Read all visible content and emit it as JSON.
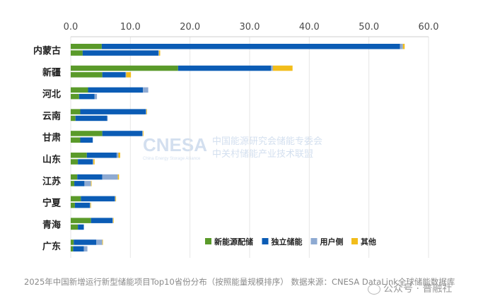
{
  "chart_data": {
    "type": "bar",
    "orientation": "horizontal",
    "stacked": true,
    "xlim": [
      0,
      60
    ],
    "x_ticks": [
      "0.0",
      "10.0",
      "20.0",
      "30.0",
      "40.0",
      "50.0",
      "60.0"
    ],
    "categories": [
      "内蒙古",
      "新疆",
      "河北",
      "云南",
      "甘肃",
      "山东",
      "江苏",
      "宁夏",
      "青海",
      "广东"
    ],
    "bar_groups": [
      {
        "name": "upper",
        "segments": [
          {
            "series": "新能源配储",
            "values": [
              5.2,
              18.0,
              2.9,
              1.6,
              5.3,
              2.7,
              1.1,
              1.7,
              3.4,
              0.5
            ]
          },
          {
            "series": "独立储能",
            "values": [
              50.0,
              15.6,
              9.2,
              11.0,
              6.7,
              5.0,
              4.2,
              5.7,
              3.6,
              3.8
            ]
          },
          {
            "series": "用户侧",
            "values": [
              0.5,
              0.3,
              0.9,
              0.1,
              0.1,
              0.3,
              2.6,
              0.1,
              0.1,
              1.0
            ]
          },
          {
            "series": "其他",
            "values": [
              0.3,
              3.3,
              0.0,
              0.1,
              0.1,
              0.3,
              0.2,
              0.1,
              0.1,
              0.1
            ]
          }
        ]
      },
      {
        "name": "lower",
        "segments": [
          {
            "series": "新能源配储",
            "values": [
              2.0,
              5.3,
              1.4,
              0.8,
              1.6,
              1.2,
              0.6,
              0.7,
              1.2,
              0.4
            ]
          },
          {
            "series": "独立储能",
            "values": [
              12.7,
              3.9,
              2.6,
              5.3,
              2.1,
              2.5,
              1.7,
              2.5,
              1.0,
              1.8
            ]
          },
          {
            "series": "用户侧",
            "values": [
              0.1,
              0.1,
              0.4,
              0.1,
              0.0,
              0.1,
              1.1,
              0.1,
              0.0,
              0.6
            ]
          },
          {
            "series": "其他",
            "values": [
              0.2,
              0.8,
              0.0,
              0.0,
              0.0,
              0.2,
              0.1,
              0.1,
              0.0,
              0.0
            ]
          }
        ]
      }
    ],
    "series": [
      {
        "name": "新能源配储",
        "color": "#5a9a2a"
      },
      {
        "name": "独立储能",
        "color": "#0b5cb5"
      },
      {
        "name": "用户侧",
        "color": "#8eaad2"
      },
      {
        "name": "其他",
        "color": "#f2bd1b"
      }
    ],
    "legend_position": "bottom-right",
    "grid": true,
    "watermark_logo": "CNESA",
    "watermark_logo_subtitle": "China Energy Storage Alliance",
    "watermark_text": [
      "中国能源研究会储能专委会",
      "中关村储能产业技术联盟"
    ]
  },
  "caption": "2025年中国新增运行新型储能项目Top10省份分布（按照能量规模排序） 数据来源：CNESA DataLink全球储能数据库",
  "source_watermark": "公众号 · 普融社"
}
